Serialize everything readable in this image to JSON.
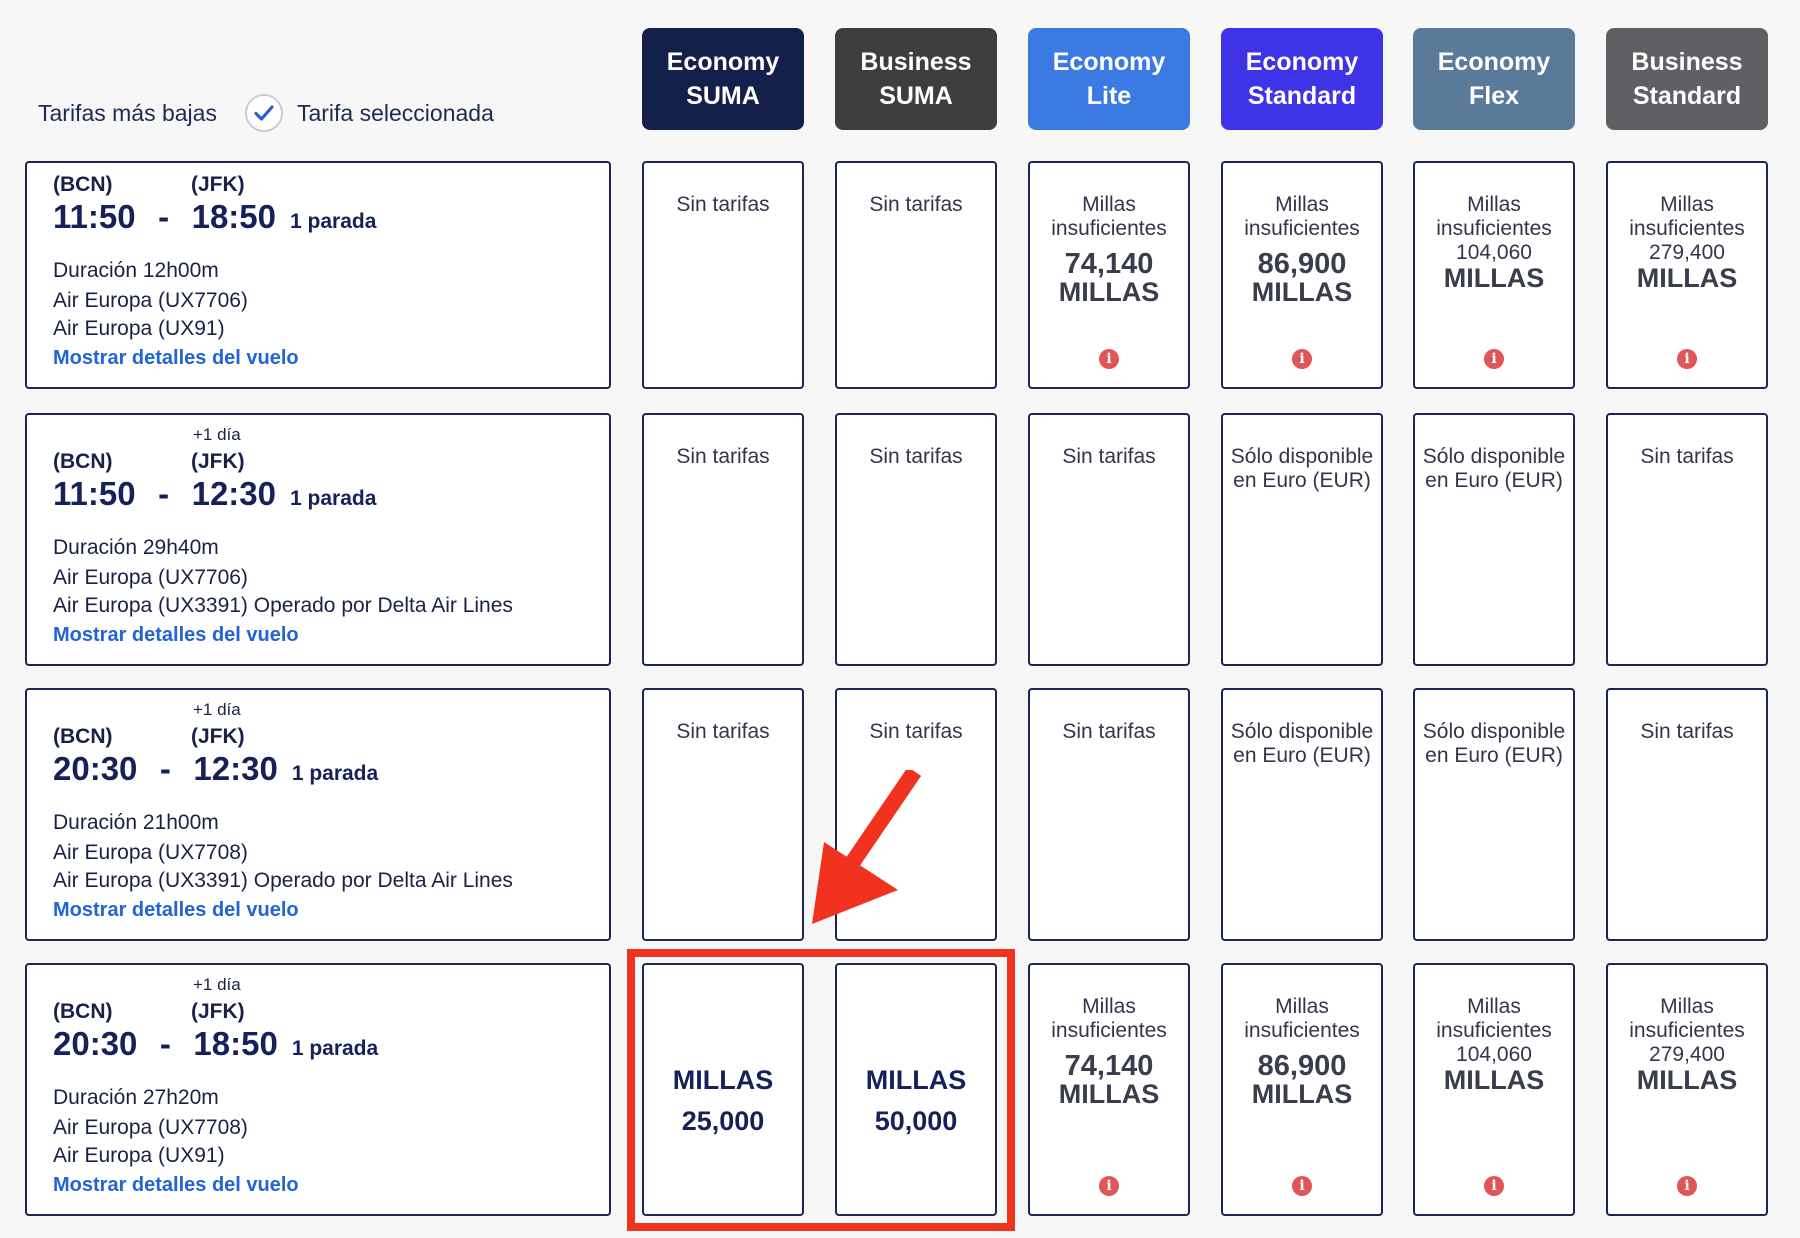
{
  "legend": {
    "lowest_label": "Tarifas más bajas",
    "selected_label": "Tarifa seleccionada"
  },
  "fare_columns": [
    {
      "line1": "Economy",
      "line2": "SUMA",
      "color": "#13214a"
    },
    {
      "line1": "Business",
      "line2": "SUMA",
      "color": "#3d3e40"
    },
    {
      "line1": "Economy",
      "line2": "Lite",
      "color": "#3b79e3"
    },
    {
      "line1": "Economy",
      "line2": "Standard",
      "color": "#3f33e8"
    },
    {
      "line1": "Economy",
      "line2": "Flex",
      "color": "#597a99"
    },
    {
      "line1": "Business",
      "line2": "Standard",
      "color": "#5f6063"
    }
  ],
  "flights": [
    {
      "origin": "(BCN)",
      "destination": "(JFK)",
      "plus_day": "",
      "depart": "11:50",
      "dash": "-",
      "arrive": "18:50",
      "stops": "1 parada",
      "duration": "Duración 12h00m",
      "segments": [
        "Air Europa (UX7706)",
        "Air Europa (UX91)"
      ],
      "details_link": "Mostrar detalles del vuelo",
      "fares": [
        {
          "type": "none",
          "text": "Sin tarifas"
        },
        {
          "type": "none",
          "text": "Sin tarifas"
        },
        {
          "type": "insufficient-big",
          "line1": "Millas",
          "line2": "insuficientes",
          "amount": "74,140",
          "unit": "MILLAS"
        },
        {
          "type": "insufficient-big",
          "line1": "Millas",
          "line2": "insuficientes",
          "amount": "86,900",
          "unit": "MILLAS"
        },
        {
          "type": "insufficient-small",
          "line1": "Millas",
          "line2": "insuficientes",
          "amount": "104,060",
          "unit": "MILLAS"
        },
        {
          "type": "insufficient-small",
          "line1": "Millas",
          "line2": "insuficientes",
          "amount": "279,400",
          "unit": "MILLAS"
        }
      ]
    },
    {
      "origin": "(BCN)",
      "destination": "(JFK)",
      "plus_day": "+1 día",
      "depart": "11:50",
      "dash": "-",
      "arrive": "12:30",
      "stops": "1 parada",
      "duration": "Duración 29h40m",
      "segments": [
        "Air Europa (UX7706)",
        "Air Europa (UX3391) Operado por Delta Air Lines"
      ],
      "details_link": "Mostrar detalles del vuelo",
      "fares": [
        {
          "type": "none",
          "text": "Sin tarifas"
        },
        {
          "type": "none",
          "text": "Sin tarifas"
        },
        {
          "type": "none",
          "text": "Sin tarifas"
        },
        {
          "type": "eur",
          "line1": "Sólo disponible",
          "line2": "en Euro (EUR)"
        },
        {
          "type": "eur",
          "line1": "Sólo disponible",
          "line2": "en Euro (EUR)"
        },
        {
          "type": "none",
          "text": "Sin tarifas"
        }
      ]
    },
    {
      "origin": "(BCN)",
      "destination": "(JFK)",
      "plus_day": "+1 día",
      "depart": "20:30",
      "dash": "-",
      "arrive": "12:30",
      "stops": "1 parada",
      "duration": "Duración 21h00m",
      "segments": [
        "Air Europa (UX7708)",
        "Air Europa (UX3391) Operado por Delta Air Lines"
      ],
      "details_link": "Mostrar detalles del vuelo",
      "fares": [
        {
          "type": "none",
          "text": "Sin tarifas"
        },
        {
          "type": "none",
          "text": "Sin tarifas"
        },
        {
          "type": "none",
          "text": "Sin tarifas"
        },
        {
          "type": "eur",
          "line1": "Sólo disponible",
          "line2": "en Euro (EUR)"
        },
        {
          "type": "eur",
          "line1": "Sólo disponible",
          "line2": "en Euro (EUR)"
        },
        {
          "type": "none",
          "text": "Sin tarifas"
        }
      ]
    },
    {
      "origin": "(BCN)",
      "destination": "(JFK)",
      "plus_day": "+1 día",
      "depart": "20:30",
      "dash": "-",
      "arrive": "18:50",
      "stops": "1 parada",
      "duration": "Duración 27h20m",
      "segments": [
        "Air Europa (UX7708)",
        "Air Europa (UX91)"
      ],
      "details_link": "Mostrar detalles del vuelo",
      "fares": [
        {
          "type": "suma",
          "unit": "MILLAS",
          "amount": "25,000"
        },
        {
          "type": "suma",
          "unit": "MILLAS",
          "amount": "50,000"
        },
        {
          "type": "insufficient-big",
          "line1": "Millas",
          "line2": "insuficientes",
          "amount": "74,140",
          "unit": "MILLAS"
        },
        {
          "type": "insufficient-big",
          "line1": "Millas",
          "line2": "insuficientes",
          "amount": "86,900",
          "unit": "MILLAS"
        },
        {
          "type": "insufficient-small",
          "line1": "Millas",
          "line2": "insuficientes",
          "amount": "104,060",
          "unit": "MILLAS"
        },
        {
          "type": "insufficient-small",
          "line1": "Millas",
          "line2": "insuficientes",
          "amount": "279,400",
          "unit": "MILLAS"
        }
      ]
    }
  ],
  "info_icon_glyph": "i",
  "icons": {
    "check": "check-icon",
    "info": "info-icon",
    "arrow": "arrow-annotation-icon"
  },
  "annotation_color": "#f0321e"
}
